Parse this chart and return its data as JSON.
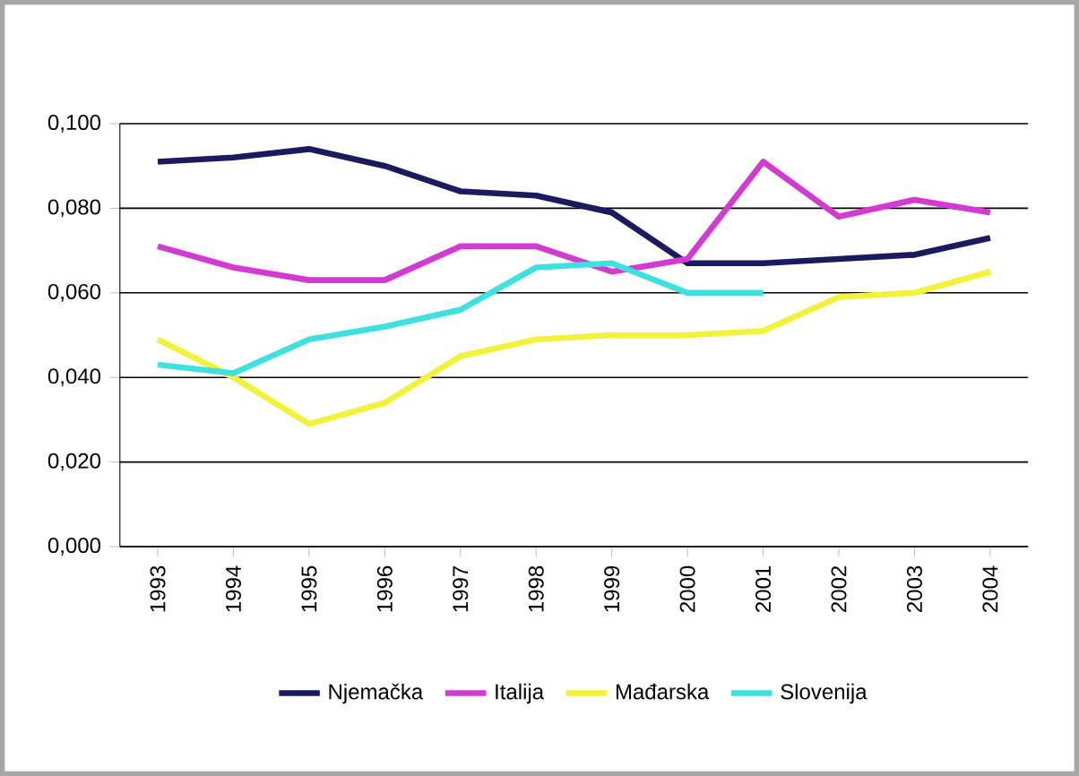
{
  "chart_data": {
    "type": "line",
    "categories": [
      "1993",
      "1994",
      "1995",
      "1996",
      "1997",
      "1998",
      "1999",
      "2000",
      "2001",
      "2002",
      "2003",
      "2004"
    ],
    "series": [
      {
        "name": "Njemačka",
        "color": "#1a1a5e",
        "values": [
          0.091,
          0.092,
          0.094,
          0.09,
          0.084,
          0.083,
          0.079,
          0.067,
          0.067,
          0.068,
          0.069,
          0.073
        ]
      },
      {
        "name": "Italija",
        "color": "#d23ad2",
        "values": [
          0.071,
          0.066,
          0.063,
          0.063,
          0.071,
          0.071,
          0.065,
          0.068,
          0.091,
          0.078,
          0.082,
          0.079
        ]
      },
      {
        "name": "Mađarska",
        "color": "#f2f23a",
        "values": [
          0.049,
          0.04,
          0.029,
          0.034,
          0.045,
          0.049,
          0.05,
          0.05,
          0.051,
          0.059,
          0.06,
          0.065
        ]
      },
      {
        "name": "Slovenija",
        "color": "#3ee0e0",
        "values": [
          0.043,
          0.041,
          0.049,
          0.052,
          0.056,
          0.066,
          0.067,
          0.06,
          0.06,
          null,
          null,
          null
        ]
      }
    ],
    "ylim": [
      0,
      0.1
    ],
    "yticks": [
      {
        "value": 0,
        "label": "0,000"
      },
      {
        "value": 0.02,
        "label": "0,020"
      },
      {
        "value": 0.04,
        "label": "0,040"
      },
      {
        "value": 0.06,
        "label": "0,060"
      },
      {
        "value": 0.08,
        "label": "0,080"
      },
      {
        "value": 0.1,
        "label": "0,100"
      }
    ],
    "grid": "y",
    "legend": "bottom",
    "marker": "none",
    "line_style": "solid"
  }
}
